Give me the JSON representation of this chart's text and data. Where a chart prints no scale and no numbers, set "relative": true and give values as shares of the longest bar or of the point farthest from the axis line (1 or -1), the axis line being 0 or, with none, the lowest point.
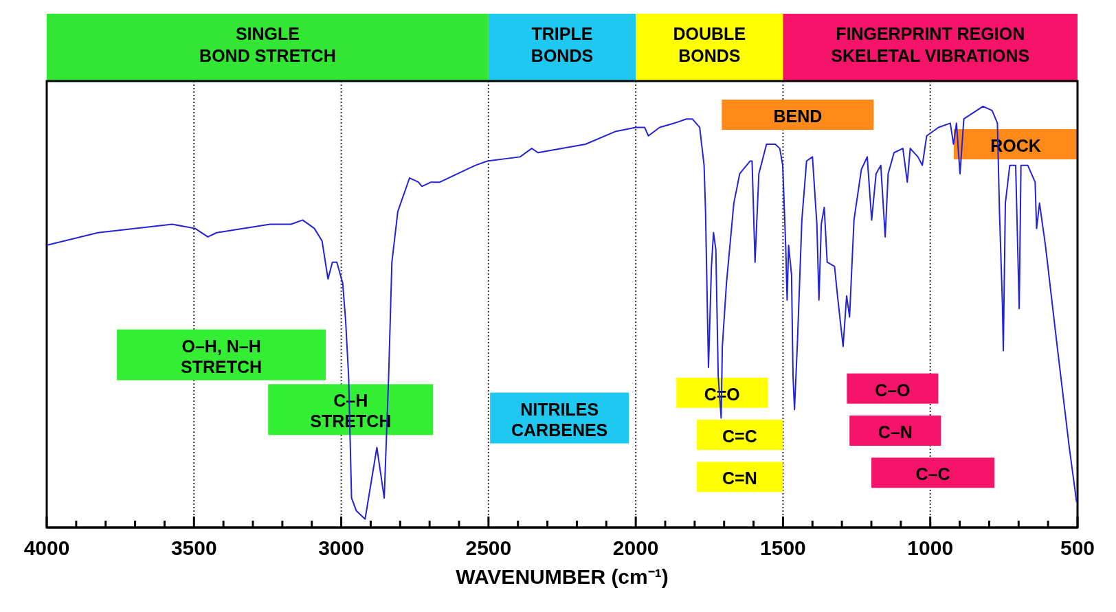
{
  "chart_data": {
    "type": "line",
    "relative": true,
    "xlabel": "WAVENUMBER (cm⁻¹)",
    "xlim": [
      4000,
      500
    ],
    "xticks": [
      4000,
      {
        "value": 3900,
        "label": null
      },
      {
        "value": 3800,
        "label": null
      },
      {
        "value": 3700,
        "label": null
      },
      {
        "value": 3600,
        "label": null
      },
      3500,
      {
        "value": 3400,
        "label": null
      },
      {
        "value": 3300,
        "label": null
      },
      {
        "value": 3200,
        "label": null
      },
      {
        "value": 3100,
        "label": null
      },
      3000,
      {
        "value": 2900,
        "label": null
      },
      {
        "value": 2800,
        "label": null
      },
      {
        "value": 2700,
        "label": null
      },
      {
        "value": 2600,
        "label": null
      },
      2500,
      {
        "value": 2400,
        "label": null
      },
      {
        "value": 2300,
        "label": null
      },
      {
        "value": 2200,
        "label": null
      },
      {
        "value": 2100,
        "label": null
      },
      2000,
      {
        "value": 1900,
        "label": null
      },
      {
        "value": 1800,
        "label": null
      },
      {
        "value": 1700,
        "label": null
      },
      {
        "value": 1600,
        "label": null
      },
      1500,
      {
        "value": 1400,
        "label": null
      },
      {
        "value": 1300,
        "label": null
      },
      {
        "value": 1200,
        "label": null
      },
      {
        "value": 1100,
        "label": null
      },
      1000,
      {
        "value": 900,
        "label": null
      },
      {
        "value": 800,
        "label": null
      },
      {
        "value": 700,
        "label": null
      },
      {
        "value": 600,
        "label": null
      },
      500
    ],
    "grid": "x",
    "x": [
      4000,
      3826,
      3574,
      3496,
      3453,
      3423,
      3242,
      3171,
      3131,
      3091,
      3065,
      3045,
      3030,
      3015,
      2995,
      2985,
      2975,
      2965,
      2949,
      2919,
      2879,
      2854,
      2839,
      2828,
      2808,
      2768,
      2738,
      2726,
      2695,
      2665,
      2605,
      2544,
      2504,
      2393,
      2353,
      2332,
      2171,
      2070,
      2000,
      1970,
      1957,
      1919,
      1869,
      1828,
      1808,
      1783,
      1768,
      1763,
      1758,
      1753,
      1743,
      1736,
      1728,
      1720,
      1710,
      1706,
      1692,
      1667,
      1647,
      1612,
      1605,
      1595,
      1582,
      1556,
      1526,
      1511,
      1501,
      1491,
      1486,
      1481,
      1471,
      1466,
      1461,
      1451,
      1436,
      1420,
      1400,
      1385,
      1378,
      1370,
      1360,
      1350,
      1325,
      1315,
      1296,
      1284,
      1274,
      1259,
      1234,
      1214,
      1199,
      1184,
      1168,
      1153,
      1143,
      1123,
      1093,
      1078,
      1068,
      1042,
      1027,
      1012,
      972,
      932,
      921,
      911,
      899,
      886,
      821,
      790,
      772,
      765,
      755,
      752,
      745,
      730,
      710,
      698,
      692,
      669,
      644,
      639,
      629,
      609,
      569,
      528,
      503
    ],
    "series": [
      {
        "color": "#2222d8",
        "values": [
          0.67,
          0.7,
          0.72,
          0.71,
          0.69,
          0.7,
          0.72,
          0.72,
          0.73,
          0.71,
          0.68,
          0.59,
          0.63,
          0.63,
          0.58,
          0.49,
          0.36,
          0.07,
          0.04,
          0.02,
          0.19,
          0.07,
          0.36,
          0.63,
          0.75,
          0.83,
          0.82,
          0.81,
          0.82,
          0.82,
          0.84,
          0.86,
          0.87,
          0.88,
          0.9,
          0.89,
          0.91,
          0.94,
          0.95,
          0.95,
          0.93,
          0.95,
          0.96,
          0.97,
          0.97,
          0.95,
          0.86,
          0.75,
          0.56,
          0.38,
          0.62,
          0.7,
          0.66,
          0.36,
          0.26,
          0.43,
          0.58,
          0.77,
          0.84,
          0.87,
          0.87,
          0.63,
          0.84,
          0.91,
          0.91,
          0.9,
          0.86,
          0.67,
          0.54,
          0.67,
          0.6,
          0.36,
          0.28,
          0.44,
          0.73,
          0.87,
          0.88,
          0.72,
          0.54,
          0.72,
          0.76,
          0.63,
          0.62,
          0.55,
          0.43,
          0.55,
          0.5,
          0.73,
          0.85,
          0.88,
          0.73,
          0.84,
          0.86,
          0.69,
          0.84,
          0.89,
          0.9,
          0.82,
          0.9,
          0.88,
          0.86,
          0.93,
          0.95,
          0.96,
          0.91,
          0.96,
          0.84,
          0.97,
          1,
          0.99,
          0.96,
          0.75,
          0.53,
          0.42,
          0.77,
          0.86,
          0.86,
          0.52,
          0.86,
          0.86,
          0.82,
          0.71,
          0.77,
          0.67,
          0.43,
          0.19,
          0.06
        ]
      }
    ],
    "annotations": [
      "SINGLE\nBOND STRETCH",
      "TRIPLE\nBONDS",
      "DOUBLE\nBONDS",
      "FINGERPRINT REGION\nSKELETAL VIBRATIONS",
      "O–H, N–H\nSTRETCH",
      "C–H\nSTRETCH",
      "NITRILES\nCARBENES",
      "C=O",
      "C=C",
      "C=N",
      "C–O",
      "C–N",
      "C–C",
      "BEND",
      "ROCK"
    ]
  }
}
